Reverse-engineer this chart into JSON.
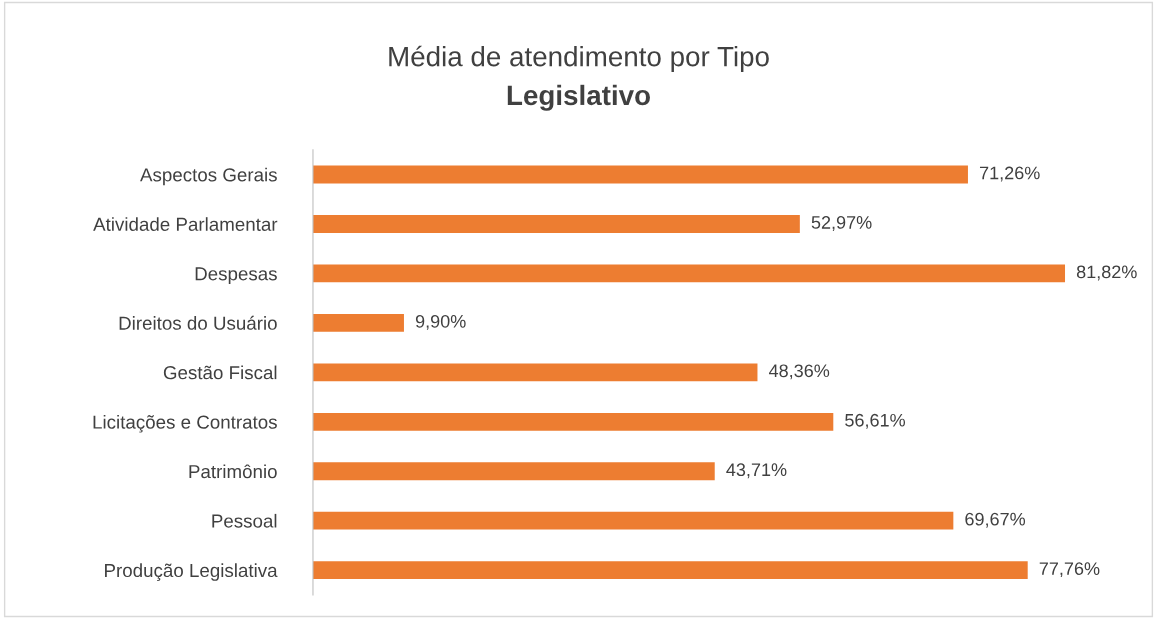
{
  "chart_data": {
    "type": "bar",
    "orientation": "horizontal",
    "title": "Média de atendimento por Tipo",
    "subtitle": "Legislativo",
    "categories": [
      "Aspectos Gerais",
      "Atividade Parlamentar",
      "Despesas",
      "Direitos do Usuário",
      "Gestão Fiscal",
      "Licitações e Contratos",
      "Patrimônio",
      "Pessoal",
      "Produção Legislativa"
    ],
    "values": [
      71.26,
      52.97,
      81.82,
      9.9,
      48.36,
      56.61,
      43.71,
      69.67,
      77.76
    ],
    "value_labels": [
      "71,26%",
      "52,97%",
      "81,82%",
      "9,90%",
      "48,36%",
      "56,61%",
      "43,71%",
      "69,67%",
      "77,76%"
    ],
    "color": "#ed7d31",
    "tick_labels": "y",
    "grid": false,
    "legend": false
  }
}
